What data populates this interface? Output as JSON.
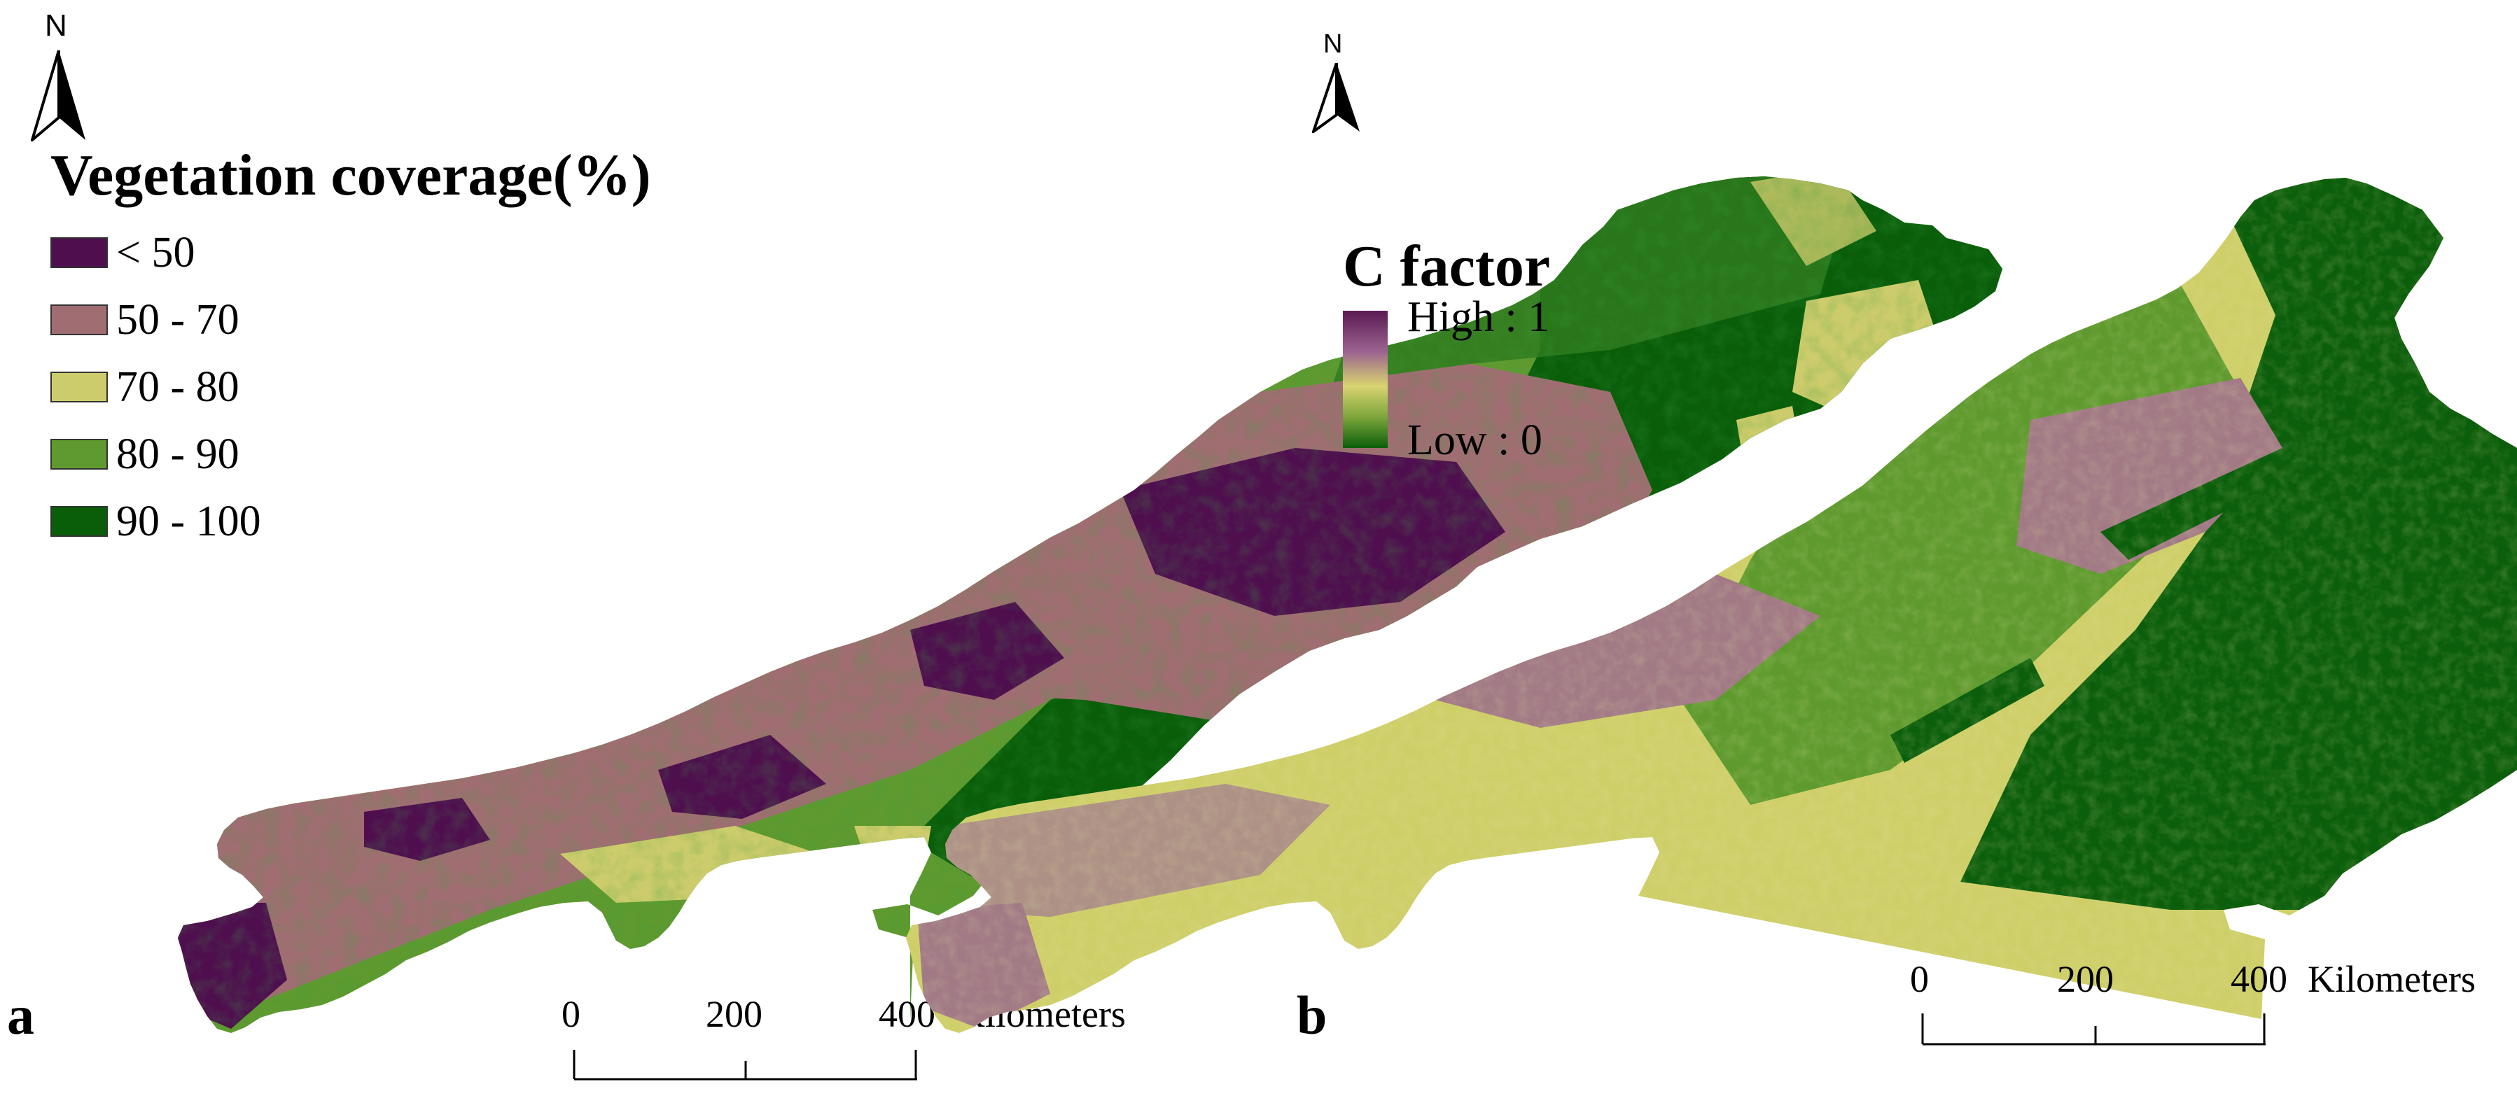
{
  "north_label": "N",
  "panel_a": {
    "letter": "a",
    "legend_title": "Vegetation coverage(%)",
    "legend_items": [
      {
        "label": "< 50",
        "color": "#4f0f4f"
      },
      {
        "label": "50 - 70",
        "color": "#a06e72"
      },
      {
        "label": "70 - 80",
        "color": "#cdcc6c"
      },
      {
        "label": "80 - 90",
        "color": "#5f9a30"
      },
      {
        "label": "90 - 100",
        "color": "#0a5e0a"
      }
    ]
  },
  "panel_b": {
    "letter": "b",
    "legend_title": "C factor",
    "high_label": "High : 1",
    "low_label": "Low : 0",
    "gradient_colors": [
      "#5a1a52",
      "#9c6490",
      "#d8d470",
      "#7aa43a",
      "#0b5e0b"
    ]
  },
  "scale_bar": {
    "tick_labels": [
      "0",
      "200",
      "400"
    ],
    "unit": "Kilometers"
  }
}
